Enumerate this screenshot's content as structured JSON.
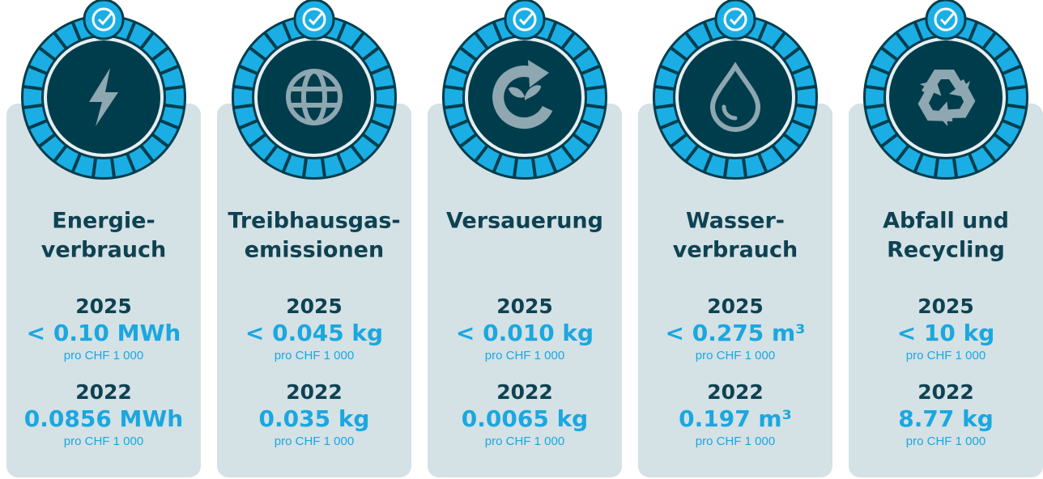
{
  "cards": [
    {
      "title": [
        "Energie-",
        "verbrauch"
      ],
      "entries": [
        {
          "year": "2025",
          "value": "< 0.10 MWh",
          "unit": "pro CHF 1 000"
        },
        {
          "year": "2022",
          "value": "0.0856 MWh",
          "unit": "pro CHF 1 000"
        }
      ]
    },
    {
      "title": [
        "Treibhausgas-",
        "emissionen"
      ],
      "entries": [
        {
          "year": "2025",
          "value": "< 0.045 kg",
          "unit": "pro CHF 1 000"
        },
        {
          "year": "2022",
          "value": "0.035 kg",
          "unit": "pro CHF 1 000"
        }
      ]
    },
    {
      "title": [
        "Versauerung"
      ],
      "entries": [
        {
          "year": "2025",
          "value": "< 0.010 kg",
          "unit": "pro CHF 1 000"
        },
        {
          "year": "2022",
          "value": "0.0065 kg",
          "unit": "pro CHF 1 000"
        }
      ]
    },
    {
      "title": [
        "Wasser-",
        "verbrauch"
      ],
      "entries": [
        {
          "year": "2025",
          "value": "< 0.275 m³",
          "unit": "pro CHF 1 000"
        },
        {
          "year": "2022",
          "value": "0.197 m³",
          "unit": "pro CHF 1 000"
        }
      ]
    },
    {
      "title": [
        "Abfall und",
        "Recycling"
      ],
      "entries": [
        {
          "year": "2025",
          "value": "< 10 kg",
          "unit": "pro CHF 1 000"
        },
        {
          "year": "2022",
          "value": "8.77 kg",
          "unit": "pro CHF 1 000"
        }
      ]
    }
  ]
}
